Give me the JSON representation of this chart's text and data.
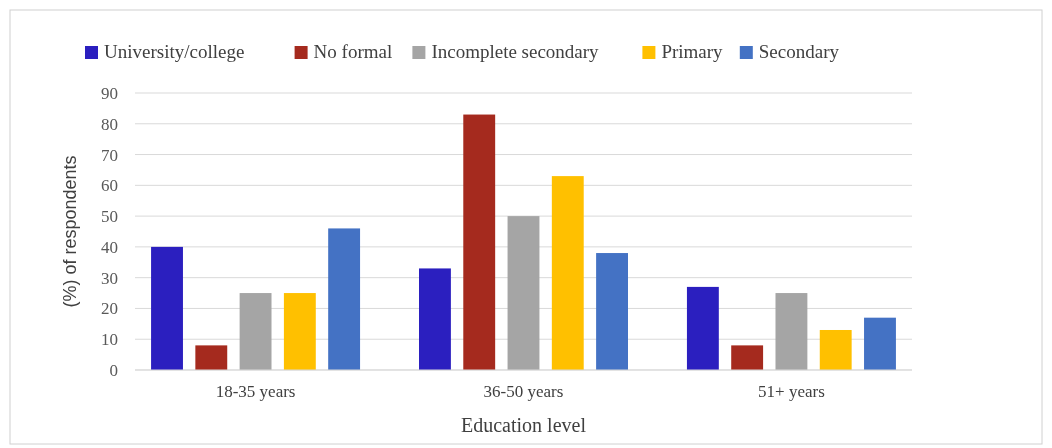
{
  "chart_data": {
    "type": "bar",
    "xlabel": "Education level",
    "ylabel": "(%) of respondents",
    "categories": [
      "18-35 years",
      "36-50 years",
      "51+ years"
    ],
    "series": [
      {
        "name": "University/college",
        "color": "#2b1fbf",
        "values": [
          40,
          33,
          27
        ]
      },
      {
        "name": "No formal",
        "color": "#a52a1e",
        "values": [
          8,
          83,
          8
        ]
      },
      {
        "name": "Incomplete secondary",
        "color": "#a5a5a5",
        "values": [
          25,
          50,
          25
        ]
      },
      {
        "name": "Primary",
        "color": "#ffc000",
        "values": [
          25,
          63,
          13
        ]
      },
      {
        "name": "Secondary",
        "color": "#4472c4",
        "values": [
          46,
          38,
          17
        ]
      }
    ],
    "ylim": [
      0,
      90
    ],
    "yticks": [
      0,
      10,
      20,
      30,
      40,
      50,
      60,
      70,
      80,
      90
    ],
    "grid": "y",
    "legend": "top"
  }
}
